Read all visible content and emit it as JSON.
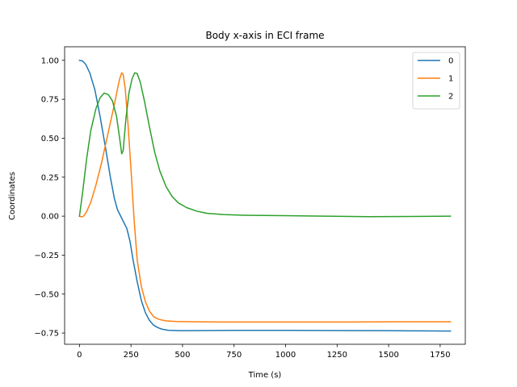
{
  "chart_data": {
    "type": "line",
    "title": "Body x-axis in ECI frame",
    "xlabel": "Time (s)",
    "ylabel": "Coordinates",
    "xlim": [
      -72,
      1872
    ],
    "ylim": [
      -0.822,
      1.087
    ],
    "xticks": [
      0,
      250,
      500,
      750,
      1000,
      1250,
      1500,
      1750
    ],
    "yticks": [
      -0.75,
      -0.5,
      -0.25,
      0.0,
      0.25,
      0.5,
      0.75,
      1.0
    ],
    "ytick_labels": [
      "−0.75",
      "−0.50",
      "−0.25",
      "0.00",
      "0.25",
      "0.50",
      "0.75",
      "1.00"
    ],
    "grid": false,
    "legend_position": "top-right",
    "series": [
      {
        "name": "0",
        "color": "#1f77b4",
        "points": [
          [
            0,
            1.0
          ],
          [
            15,
            0.995
          ],
          [
            30,
            0.975
          ],
          [
            50,
            0.92
          ],
          [
            75,
            0.81
          ],
          [
            100,
            0.64
          ],
          [
            125,
            0.45
          ],
          [
            150,
            0.25
          ],
          [
            170,
            0.11
          ],
          [
            185,
            0.04
          ],
          [
            200,
            0.0
          ],
          [
            215,
            -0.04
          ],
          [
            230,
            -0.08
          ],
          [
            245,
            -0.16
          ],
          [
            260,
            -0.28
          ],
          [
            280,
            -0.42
          ],
          [
            300,
            -0.54
          ],
          [
            320,
            -0.62
          ],
          [
            340,
            -0.67
          ],
          [
            360,
            -0.7
          ],
          [
            380,
            -0.715
          ],
          [
            400,
            -0.725
          ],
          [
            430,
            -0.732
          ],
          [
            470,
            -0.734
          ],
          [
            500,
            -0.735
          ],
          [
            600,
            -0.734
          ],
          [
            750,
            -0.733
          ],
          [
            1000,
            -0.733
          ],
          [
            1250,
            -0.734
          ],
          [
            1500,
            -0.735
          ],
          [
            1650,
            -0.736
          ],
          [
            1800,
            -0.737
          ]
        ]
      },
      {
        "name": "1",
        "color": "#ff7f0e",
        "points": [
          [
            0,
            0.0
          ],
          [
            10,
            -0.005
          ],
          [
            20,
            0.0
          ],
          [
            35,
            0.03
          ],
          [
            55,
            0.09
          ],
          [
            80,
            0.2
          ],
          [
            105,
            0.33
          ],
          [
            130,
            0.48
          ],
          [
            150,
            0.6
          ],
          [
            170,
            0.72
          ],
          [
            185,
            0.82
          ],
          [
            195,
            0.88
          ],
          [
            205,
            0.92
          ],
          [
            212,
            0.91
          ],
          [
            222,
            0.82
          ],
          [
            235,
            0.6
          ],
          [
            250,
            0.3
          ],
          [
            265,
            -0.02
          ],
          [
            280,
            -0.28
          ],
          [
            300,
            -0.45
          ],
          [
            320,
            -0.55
          ],
          [
            340,
            -0.61
          ],
          [
            360,
            -0.645
          ],
          [
            385,
            -0.662
          ],
          [
            420,
            -0.672
          ],
          [
            470,
            -0.676
          ],
          [
            550,
            -0.678
          ],
          [
            700,
            -0.679
          ],
          [
            1000,
            -0.679
          ],
          [
            1300,
            -0.679
          ],
          [
            1550,
            -0.678
          ],
          [
            1800,
            -0.678
          ]
        ]
      },
      {
        "name": "2",
        "color": "#2ca02c",
        "points": [
          [
            0,
            0.0
          ],
          [
            15,
            0.15
          ],
          [
            35,
            0.37
          ],
          [
            55,
            0.55
          ],
          [
            80,
            0.69
          ],
          [
            100,
            0.76
          ],
          [
            120,
            0.79
          ],
          [
            140,
            0.78
          ],
          [
            160,
            0.74
          ],
          [
            180,
            0.64
          ],
          [
            195,
            0.5
          ],
          [
            205,
            0.4
          ],
          [
            212,
            0.42
          ],
          [
            225,
            0.62
          ],
          [
            240,
            0.79
          ],
          [
            255,
            0.88
          ],
          [
            268,
            0.92
          ],
          [
            280,
            0.915
          ],
          [
            295,
            0.86
          ],
          [
            315,
            0.74
          ],
          [
            340,
            0.57
          ],
          [
            365,
            0.41
          ],
          [
            390,
            0.29
          ],
          [
            420,
            0.19
          ],
          [
            450,
            0.125
          ],
          [
            480,
            0.085
          ],
          [
            520,
            0.055
          ],
          [
            570,
            0.032
          ],
          [
            620,
            0.018
          ],
          [
            700,
            0.01
          ],
          [
            800,
            0.006
          ],
          [
            1000,
            0.003
          ],
          [
            1200,
            0.0
          ],
          [
            1400,
            -0.003
          ],
          [
            1600,
            -0.002
          ],
          [
            1800,
            0.0
          ]
        ]
      }
    ]
  }
}
